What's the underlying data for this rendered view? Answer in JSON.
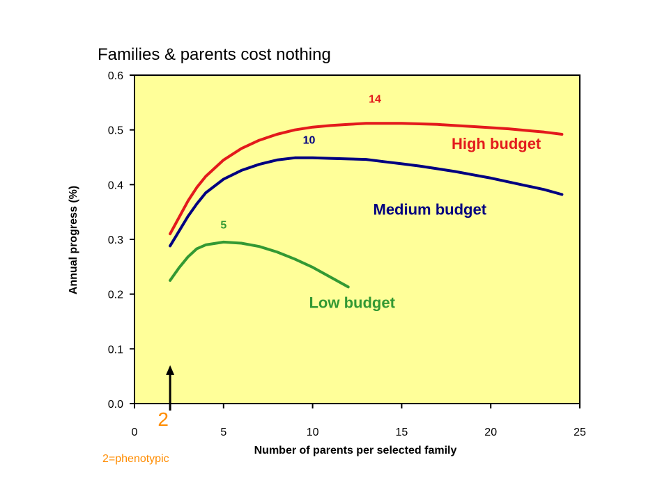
{
  "chart_data": {
    "type": "line",
    "title": "Families & parents cost nothing",
    "xlabel": "Number of parents per selected family",
    "ylabel": "Annual progress (%)",
    "xlim": [
      0,
      25
    ],
    "ylim": [
      0,
      0.6
    ],
    "x_ticks": [
      "0",
      "5",
      "10",
      "15",
      "20",
      "25"
    ],
    "y_ticks": [
      "0.0",
      "0.1",
      "0.2",
      "0.3",
      "0.4",
      "0.5",
      "0.6"
    ],
    "grid": false,
    "plot_background": "#FFFF99",
    "series": [
      {
        "name": "High budget",
        "color": "#E31A1C",
        "peak_label": "14",
        "peak_label_at": [
          13.5,
          0.55
        ],
        "label_at": [
          17.8,
          0.465
        ],
        "x": [
          2,
          2.5,
          3,
          3.5,
          4,
          5,
          6,
          7,
          8,
          9,
          10,
          11,
          12,
          13,
          14,
          15,
          16,
          17,
          18,
          19,
          20,
          21,
          22,
          23,
          24
        ],
        "values": [
          0.31,
          0.34,
          0.37,
          0.395,
          0.415,
          0.445,
          0.466,
          0.481,
          0.492,
          0.5,
          0.505,
          0.508,
          0.51,
          0.512,
          0.512,
          0.512,
          0.511,
          0.51,
          0.508,
          0.506,
          0.504,
          0.502,
          0.499,
          0.496,
          0.492
        ]
      },
      {
        "name": "Medium budget",
        "color": "#000080",
        "peak_label": "10",
        "peak_label_at": [
          9.8,
          0.475
        ],
        "label_at": [
          13.4,
          0.345
        ],
        "x": [
          2,
          2.5,
          3,
          3.5,
          4,
          5,
          6,
          7,
          8,
          9,
          10,
          11,
          12,
          13,
          14,
          15,
          16,
          17,
          18,
          19,
          20,
          21,
          22,
          23,
          24
        ],
        "values": [
          0.288,
          0.315,
          0.342,
          0.365,
          0.385,
          0.41,
          0.426,
          0.437,
          0.445,
          0.449,
          0.449,
          0.448,
          0.447,
          0.446,
          0.442,
          0.438,
          0.434,
          0.429,
          0.424,
          0.418,
          0.412,
          0.405,
          0.398,
          0.391,
          0.382
        ]
      },
      {
        "name": "Low budget",
        "color": "#339933",
        "peak_label": "5",
        "peak_label_at": [
          5,
          0.32
        ],
        "label_at": [
          9.8,
          0.175
        ],
        "x": [
          2,
          2.5,
          3,
          3.5,
          4,
          5,
          6,
          7,
          8,
          9,
          10,
          11,
          12
        ],
        "values": [
          0.225,
          0.248,
          0.268,
          0.283,
          0.29,
          0.295,
          0.293,
          0.287,
          0.277,
          0.264,
          0.249,
          0.231,
          0.213
        ]
      }
    ],
    "annotations": [
      {
        "text": "2",
        "color": "#FF8C00",
        "arrow_x": 2,
        "arrow_from_y": 0.0,
        "arrow_to_y": 0.07
      },
      {
        "text": "2=phenotypic",
        "color": "#FF8C00"
      }
    ]
  }
}
